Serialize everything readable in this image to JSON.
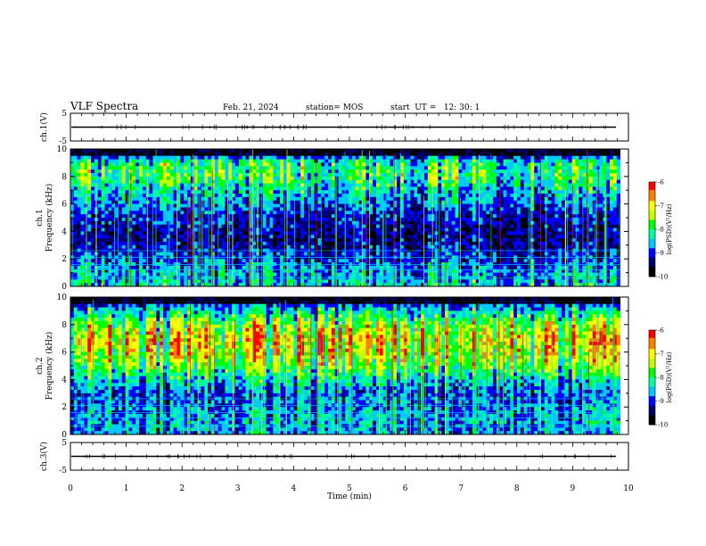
{
  "header": {
    "title": "VLF Spectra",
    "date": "Feb. 21, 2024",
    "station": "station= MOS",
    "start": "start  UT =   12: 30: 1"
  },
  "colors": {
    "spectrogram_cmap": [
      "#000000",
      "#00006e",
      "#0000ff",
      "#00c8ff",
      "#00ffa0",
      "#00ff00",
      "#c8ff00",
      "#ffff00",
      "#ff8000",
      "#ff0000",
      "#ffffff"
    ]
  },
  "chart_data": [
    {
      "type": "line",
      "name": "ch1-waveform",
      "ylabel": "ch.1(V)",
      "ylim": [
        -5,
        5
      ],
      "yticks": [
        "5",
        "-5"
      ],
      "xlim": [
        0,
        10
      ],
      "baseline": 0
    },
    {
      "type": "heatmap",
      "name": "ch1-spectrogram",
      "ylabel": "ch.1\nFrequency (kHz)",
      "ylim": [
        0,
        10
      ],
      "yticks": [
        "0",
        "2",
        "4",
        "6",
        "8",
        "10"
      ],
      "xlim": [
        0,
        9.85
      ],
      "band_profile_kHz": [
        0,
        1,
        2,
        3,
        4,
        5,
        6,
        7,
        8,
        9,
        10
      ],
      "band_intensity": [
        0.45,
        0.4,
        0.3,
        0.2,
        0.2,
        0.25,
        0.35,
        0.45,
        0.6,
        0.55,
        0.0
      ],
      "colorbar": {
        "label": "log(PSD)(V²/Hz)",
        "ticks": [
          "-6",
          "-7",
          "-8",
          "-9",
          "-10"
        ],
        "range": [
          -10,
          -6
        ]
      }
    },
    {
      "type": "heatmap",
      "name": "ch2-spectrogram",
      "ylabel": "ch.2\nFrequency (kHz)",
      "ylim": [
        0,
        10
      ],
      "yticks": [
        "0",
        "2",
        "4",
        "6",
        "8",
        "10"
      ],
      "xlim": [
        0,
        9.85
      ],
      "band_profile_kHz": [
        0,
        1,
        2,
        3,
        4,
        5,
        6,
        7,
        8,
        9,
        10
      ],
      "band_intensity": [
        0.35,
        0.4,
        0.35,
        0.3,
        0.45,
        0.65,
        0.78,
        0.82,
        0.7,
        0.45,
        0.1
      ],
      "colorbar": {
        "label": "log(PSD)(V²/Hz)",
        "ticks": [
          "-6",
          "-7",
          "-8",
          "-9",
          "-10"
        ],
        "range": [
          -10,
          -6
        ]
      }
    },
    {
      "type": "line",
      "name": "ch3-waveform",
      "ylabel": "ch.3(V)",
      "ylim": [
        -5,
        5
      ],
      "yticks": [
        "5",
        "-5"
      ],
      "xlim": [
        0,
        10
      ],
      "baseline": 0
    }
  ],
  "xaxis": {
    "label": "Time (min)",
    "ticks": [
      "0",
      "1",
      "2",
      "3",
      "4",
      "5",
      "6",
      "7",
      "8",
      "9",
      "10"
    ]
  }
}
